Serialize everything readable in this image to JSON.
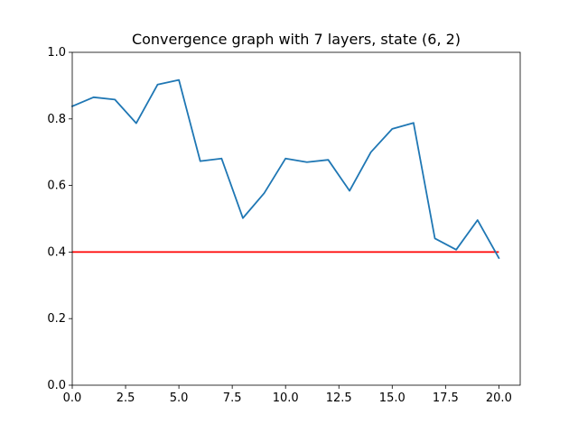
{
  "chart_data": {
    "type": "line",
    "title": "Convergence graph with 7 layers, state (6, 2)",
    "xlabel": "",
    "ylabel": "",
    "xlim": [
      0,
      21
    ],
    "ylim": [
      0,
      1
    ],
    "x_ticks": [
      0,
      2.5,
      5,
      7.5,
      10,
      12.5,
      15,
      17.5,
      20
    ],
    "x_tick_labels": [
      "0.0",
      "2.5",
      "5.0",
      "7.5",
      "10.0",
      "12.5",
      "15.0",
      "17.5",
      "20.0"
    ],
    "y_ticks": [
      0,
      0.2,
      0.4,
      0.6,
      0.8,
      1.0
    ],
    "y_tick_labels": [
      "0.0",
      "0.2",
      "0.4",
      "0.6",
      "0.8",
      "1.0"
    ],
    "grid": false,
    "legend": "none",
    "series": [
      {
        "color": "#1f77b4",
        "x": [
          0,
          1,
          2,
          3,
          4,
          5,
          6,
          7,
          8,
          9,
          10,
          11,
          12,
          13,
          14,
          15,
          16,
          17,
          18,
          19,
          20
        ],
        "y": [
          0.838,
          0.865,
          0.858,
          0.787,
          0.903,
          0.917,
          0.673,
          0.681,
          0.502,
          0.577,
          0.681,
          0.67,
          0.677,
          0.584,
          0.7,
          0.77,
          0.788,
          0.441,
          0.407,
          0.496,
          0.382
        ]
      }
    ],
    "reference_lines": [
      {
        "color": "#ff0000",
        "y": 0.4,
        "x_start": 0,
        "x_end": 20
      }
    ]
  }
}
